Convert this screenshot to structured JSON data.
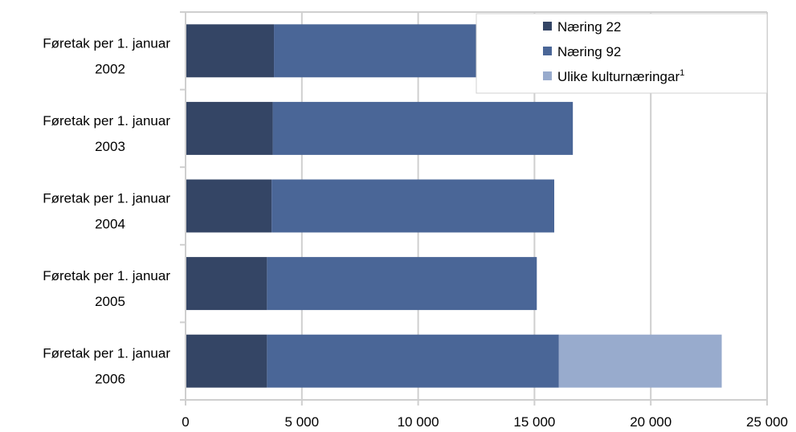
{
  "chart_data": {
    "type": "bar",
    "orientation": "horizontal",
    "stacked": true,
    "categories": [
      [
        "Føretak per 1. januar",
        "2002"
      ],
      [
        "Føretak per 1. januar",
        "2003"
      ],
      [
        "Føretak per 1. januar",
        "2004"
      ],
      [
        "Føretak per 1. januar",
        "2005"
      ],
      [
        "Føretak per 1. januar",
        "2006"
      ]
    ],
    "series": [
      {
        "name": "Næring 22",
        "color": "#344565",
        "values": [
          3800,
          3750,
          3700,
          3500,
          3500
        ]
      },
      {
        "name": "Næring 92",
        "color": "#4a6697",
        "values": [
          8700,
          12900,
          12150,
          11600,
          12550
        ]
      },
      {
        "name": "Ulike kulturnæringar",
        "name_superscript": "1",
        "color": "#98abcd",
        "values": [
          0,
          0,
          0,
          0,
          7000
        ]
      }
    ],
    "xlim": [
      0,
      25000
    ],
    "xticks": [
      0,
      5000,
      10000,
      15000,
      20000,
      25000
    ],
    "xtick_labels": [
      "0",
      "5 000",
      "10 000",
      "15 000",
      "20 000",
      "25 000"
    ],
    "grid": true,
    "legend_position": "top-right",
    "title": "",
    "xlabel": "",
    "ylabel": ""
  }
}
